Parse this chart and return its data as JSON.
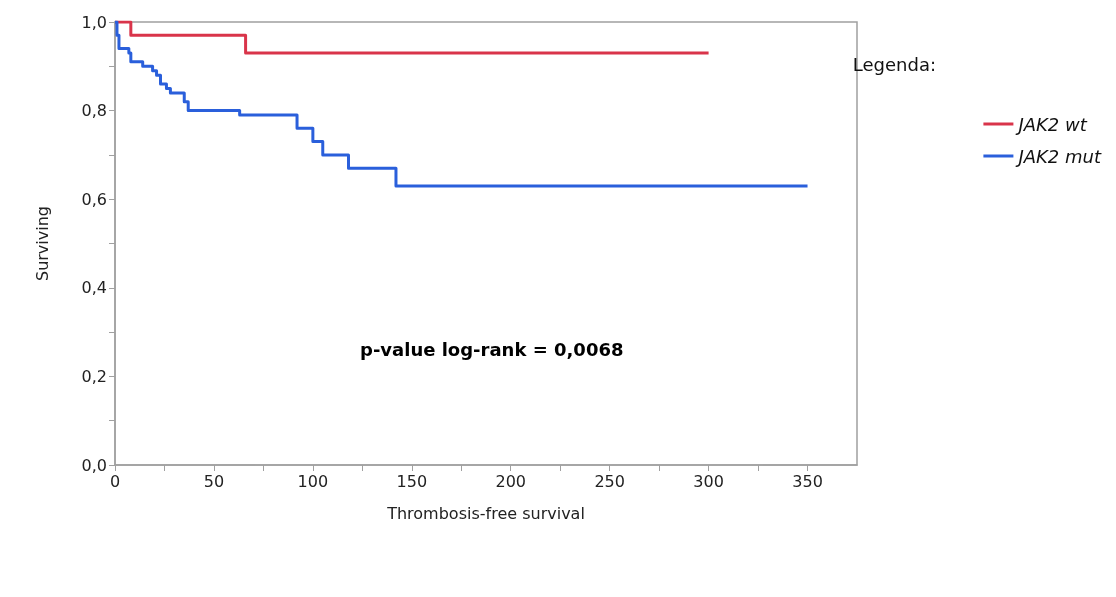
{
  "chart_data": {
    "type": "step",
    "xlabel": "Thrombosis-free survival",
    "ylabel": "Surviving",
    "legend_title": "Legenda:",
    "legend": "right",
    "series": [
      {
        "name": "JAK2 wt",
        "color": "#d9344a",
        "x": [
          0,
          8,
          66,
          300
        ],
        "values": [
          1.0,
          0.97,
          0.93,
          0.93
        ]
      },
      {
        "name": "JAK2 mut",
        "color": "#2a5fdb",
        "x": [
          0,
          1,
          2,
          7,
          8,
          14,
          19,
          21,
          23,
          26,
          28,
          35,
          37,
          63,
          92,
          100,
          105,
          118,
          142,
          350
        ],
        "values": [
          1.0,
          0.97,
          0.94,
          0.93,
          0.91,
          0.9,
          0.89,
          0.88,
          0.86,
          0.85,
          0.84,
          0.82,
          0.8,
          0.79,
          0.76,
          0.73,
          0.7,
          0.67,
          0.63,
          0.63
        ]
      }
    ],
    "xlim": [
      0,
      375
    ],
    "xticks": [
      0,
      50,
      100,
      150,
      200,
      250,
      300,
      350
    ],
    "ylim": [
      0,
      1.0
    ],
    "yticks": [
      {
        "value": 0,
        "label": "0,0"
      },
      {
        "value": 0.2,
        "label": "0,2"
      },
      {
        "value": 0.4,
        "label": "0,4"
      },
      {
        "value": 0.6,
        "label": "0,6"
      },
      {
        "value": 0.8,
        "label": "0,8"
      },
      {
        "value": 1.0,
        "label": "1,0"
      }
    ],
    "grid": false,
    "marker": "none",
    "line_style": "solid",
    "annotations": [
      "p-value log-rank = 0,0068"
    ]
  }
}
